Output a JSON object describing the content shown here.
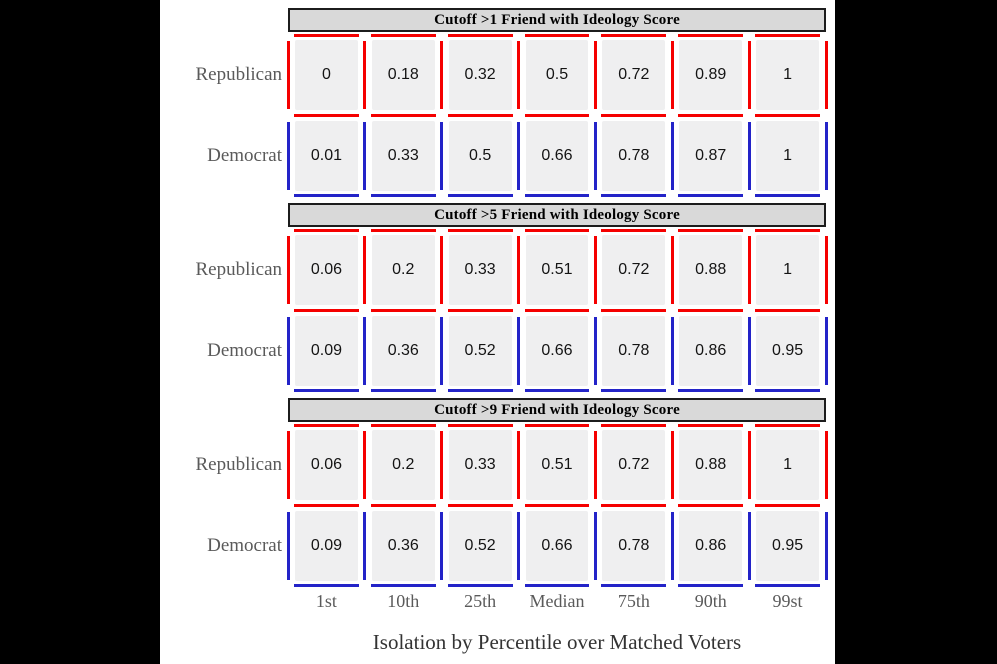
{
  "figure": {
    "caption": "Isolation by Percentile over Matched Voters",
    "x_labels": [
      "1st",
      "10th",
      "25th",
      "Median",
      "75th",
      "90th",
      "99st"
    ],
    "colors": {
      "republican_line": "#f50000",
      "democrat_line": "#2323c8",
      "cell_fill": "#efeff0",
      "title_fill": "#d9d9d9",
      "title_border": "#1c1c1c",
      "label_text": "#5a5a5a",
      "value_text": "#141414",
      "letterbox": "#000000",
      "background": "#ffffff"
    },
    "panels": [
      {
        "title": "Cutoff >1 Friend with Ideology Score",
        "rows": [
          {
            "label": "Republican",
            "values": [
              "0",
              "0.18",
              "0.32",
              "0.5",
              "0.72",
              "0.89",
              "1"
            ]
          },
          {
            "label": "Democrat",
            "values": [
              "0.01",
              "0.33",
              "0.5",
              "0.66",
              "0.78",
              "0.87",
              "1"
            ]
          }
        ]
      },
      {
        "title": "Cutoff >5 Friend with Ideology Score",
        "rows": [
          {
            "label": "Republican",
            "values": [
              "0.06",
              "0.2",
              "0.33",
              "0.51",
              "0.72",
              "0.88",
              "1"
            ]
          },
          {
            "label": "Democrat",
            "values": [
              "0.09",
              "0.36",
              "0.52",
              "0.66",
              "0.78",
              "0.86",
              "0.95"
            ]
          }
        ]
      },
      {
        "title": "Cutoff >9 Friend with Ideology Score",
        "rows": [
          {
            "label": "Republican",
            "values": [
              "0.06",
              "0.2",
              "0.33",
              "0.51",
              "0.72",
              "0.88",
              "1"
            ]
          },
          {
            "label": "Democrat",
            "values": [
              "0.09",
              "0.36",
              "0.52",
              "0.66",
              "0.78",
              "0.86",
              "0.95"
            ]
          }
        ]
      }
    ]
  },
  "chart_data": {
    "type": "table",
    "title": "Isolation by Percentile over Matched Voters",
    "categories": [
      "1st",
      "10th",
      "25th",
      "Median",
      "75th",
      "90th",
      "99st"
    ],
    "xlabel": "Isolation by Percentile over Matched Voters",
    "legend_position": "none",
    "grid": "dashed tile borders, red = Republican, blue = Democrat",
    "panels": [
      {
        "title": "Cutoff >1 Friend with Ideology Score",
        "series": [
          {
            "name": "Republican",
            "values": [
              0,
              0.18,
              0.32,
              0.5,
              0.72,
              0.89,
              1
            ]
          },
          {
            "name": "Democrat",
            "values": [
              0.01,
              0.33,
              0.5,
              0.66,
              0.78,
              0.87,
              1
            ]
          }
        ]
      },
      {
        "title": "Cutoff >5 Friend with Ideology Score",
        "series": [
          {
            "name": "Republican",
            "values": [
              0.06,
              0.2,
              0.33,
              0.51,
              0.72,
              0.88,
              1
            ]
          },
          {
            "name": "Democrat",
            "values": [
              0.09,
              0.36,
              0.52,
              0.66,
              0.78,
              0.86,
              0.95
            ]
          }
        ]
      },
      {
        "title": "Cutoff >9 Friend with Ideology Score",
        "series": [
          {
            "name": "Republican",
            "values": [
              0.06,
              0.2,
              0.33,
              0.51,
              0.72,
              0.88,
              1
            ]
          },
          {
            "name": "Democrat",
            "values": [
              0.09,
              0.36,
              0.52,
              0.66,
              0.78,
              0.86,
              0.95
            ]
          }
        ]
      }
    ]
  }
}
